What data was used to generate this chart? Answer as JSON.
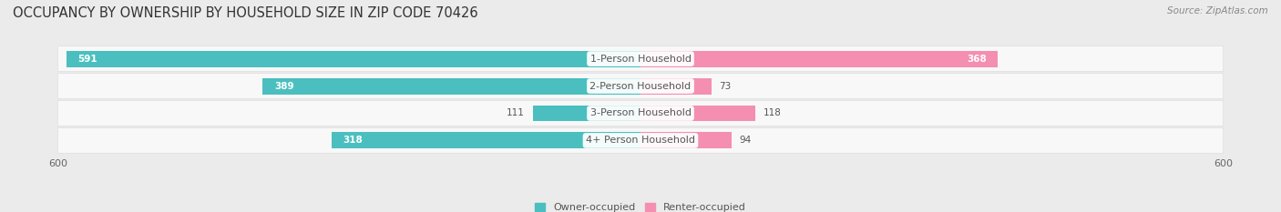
{
  "title": "OCCUPANCY BY OWNERSHIP BY HOUSEHOLD SIZE IN ZIP CODE 70426",
  "source": "Source: ZipAtlas.com",
  "categories": [
    "1-Person Household",
    "2-Person Household",
    "3-Person Household",
    "4+ Person Household"
  ],
  "owner_values": [
    591,
    389,
    111,
    318
  ],
  "renter_values": [
    368,
    73,
    118,
    94
  ],
  "owner_color": "#4bbfbf",
  "renter_color": "#f48fb1",
  "axis_limit": 600,
  "background_color": "#ebebeb",
  "bar_background": "#f8f8f8",
  "bar_bg_edge": "#dddddd",
  "legend_owner": "Owner-occupied",
  "legend_renter": "Renter-occupied",
  "title_fontsize": 10.5,
  "label_fontsize": 8,
  "value_fontsize": 7.5,
  "tick_fontsize": 8,
  "source_fontsize": 7.5
}
